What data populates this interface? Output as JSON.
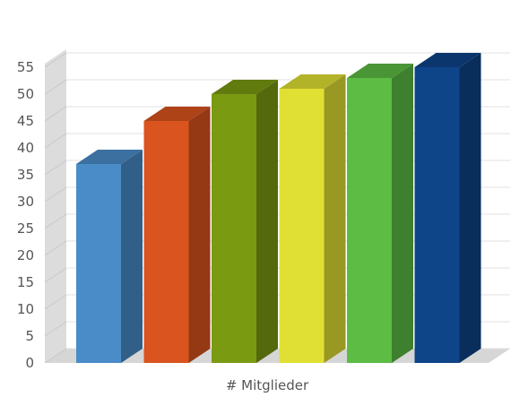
{
  "chart_data": {
    "type": "bar",
    "title": "",
    "xlabel": "# Mitglieder",
    "ylabel": "",
    "ylim": [
      0,
      55
    ],
    "yticks": [
      0,
      5,
      10,
      15,
      20,
      25,
      30,
      35,
      40,
      45,
      50,
      55
    ],
    "grid": true,
    "three_d": true,
    "categories": [
      "",
      "",
      "",
      "",
      "",
      ""
    ],
    "values": [
      37,
      45,
      50,
      51,
      53,
      55
    ],
    "colors": [
      "#4a8cc8",
      "#d9541e",
      "#7a9a12",
      "#e0e034",
      "#5cbc44",
      "#0e4488"
    ]
  }
}
